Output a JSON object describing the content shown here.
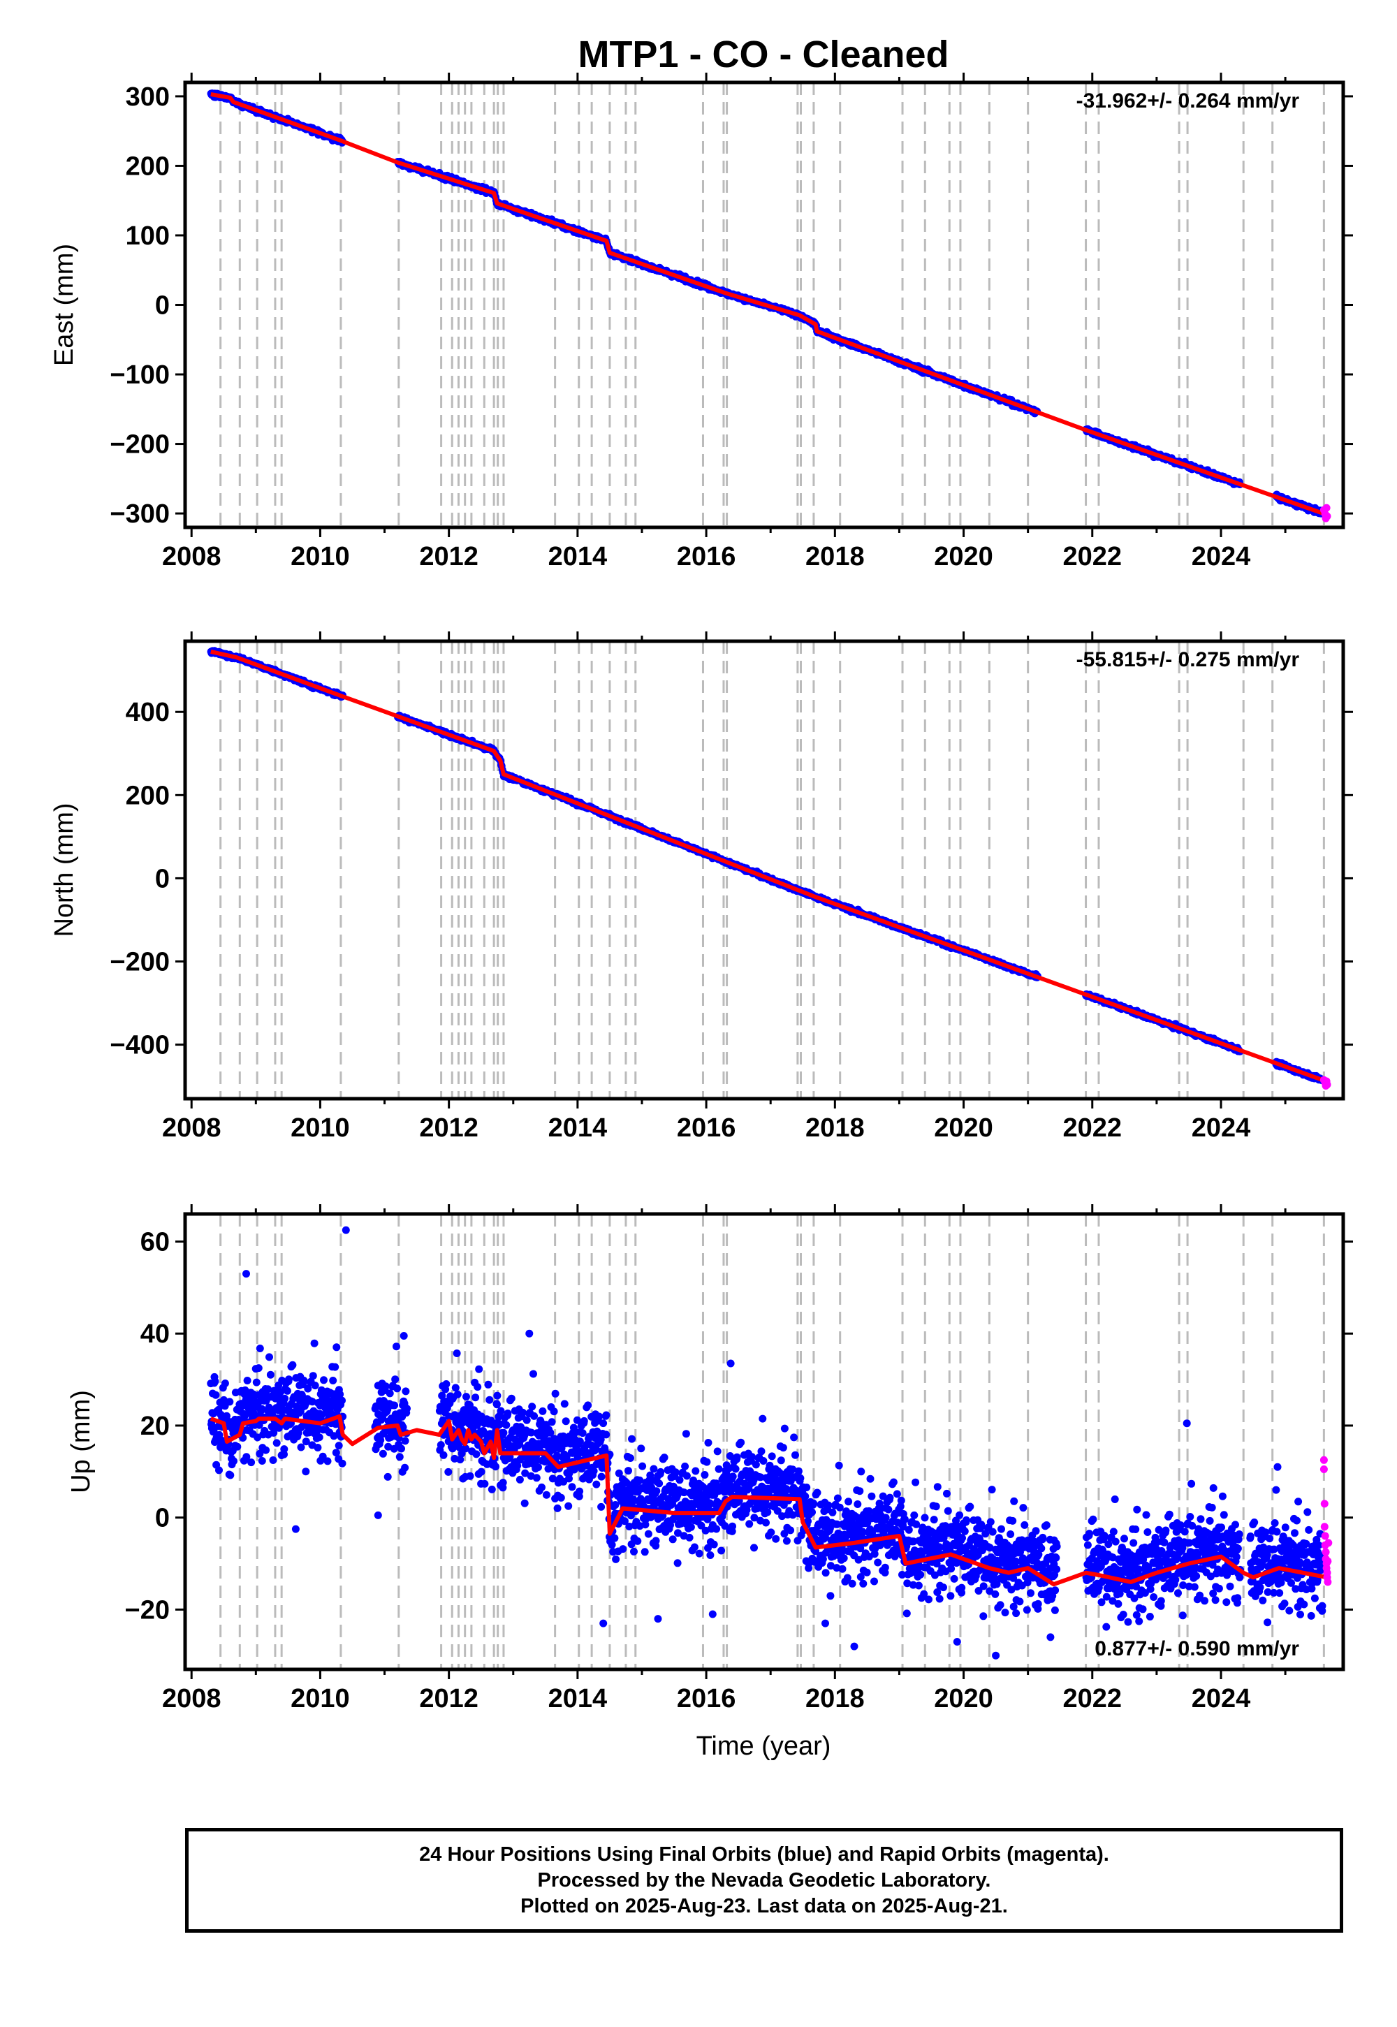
{
  "chart_title": "MTP1  - CO - Cleaned",
  "x_axis_label": "Time (year)",
  "colors": {
    "final_orbits": "#0000ff",
    "rapid_orbits": "#ff00ff",
    "model": "#ff0000",
    "event_lines": "#bbbbbb",
    "frame": "#000000"
  },
  "event_years": [
    2008.45,
    2008.75,
    2009.02,
    2009.3,
    2009.4,
    2010.32,
    2011.22,
    2011.88,
    2012.05,
    2012.15,
    2012.25,
    2012.35,
    2012.55,
    2012.7,
    2012.76,
    2012.85,
    2013.65,
    2014.02,
    2014.22,
    2014.5,
    2014.75,
    2014.9,
    2015.95,
    2016.27,
    2016.32,
    2017.42,
    2017.47,
    2017.67,
    2018.08,
    2019.05,
    2019.4,
    2019.78,
    2019.95,
    2020.4,
    2021.0,
    2021.9,
    2022.1,
    2023.35,
    2023.48,
    2024.35,
    2024.8,
    2025.6
  ],
  "chart_data": [
    {
      "type": "scatter",
      "ylabel": "East (mm)",
      "rate_label": "-31.962+/- 0.264 mm/yr",
      "xlim": [
        2007.9,
        2025.9
      ],
      "ylim": [
        -320,
        320
      ],
      "xticks": [
        "2008",
        "2010",
        "2012",
        "2014",
        "2016",
        "2018",
        "2020",
        "2022",
        "2024"
      ],
      "yticks": [
        "300",
        "200",
        "100",
        "0",
        "−100",
        "−200",
        "−300"
      ],
      "ytick_values": [
        300,
        200,
        100,
        0,
        -100,
        -200,
        -300
      ],
      "data_gaps": [
        [
          2010.35,
          2011.2
        ],
        [
          2021.15,
          2021.9
        ],
        [
          2024.3,
          2024.85
        ]
      ],
      "model_line": {
        "x": [
          2008.3,
          2008.6,
          2008.65,
          2010.3,
          2011.2,
          2012.7,
          2012.75,
          2014.45,
          2014.5,
          2016.3,
          2017.45,
          2017.7,
          2017.72,
          2021.9,
          2025.65
        ],
        "y": [
          303,
          298,
          292,
          237,
          205,
          161,
          146,
          92,
          75,
          17,
          -15,
          -28,
          -38,
          -180,
          -302
        ]
      },
      "rapid_orbit_points": {
        "x": [
          2025.6,
          2025.62,
          2025.63,
          2025.64,
          2025.65
        ],
        "y": [
          -295,
          -301,
          -307,
          -292,
          -304
        ]
      }
    },
    {
      "type": "scatter",
      "ylabel": "North (mm)",
      "rate_label": "-55.815+/- 0.275 mm/yr",
      "xlim": [
        2007.9,
        2025.9
      ],
      "ylim": [
        -530,
        570
      ],
      "xticks": [
        "2008",
        "2010",
        "2012",
        "2014",
        "2016",
        "2018",
        "2020",
        "2022",
        "2024"
      ],
      "yticks": [
        "400",
        "200",
        "0",
        "−200",
        "−400"
      ],
      "ytick_values": [
        400,
        200,
        0,
        -200,
        -400
      ],
      "data_gaps": [
        [
          2010.35,
          2011.2
        ],
        [
          2021.15,
          2021.9
        ],
        [
          2024.3,
          2024.85
        ]
      ],
      "model_line": {
        "x": [
          2008.3,
          2008.7,
          2010.3,
          2012.7,
          2012.8,
          2012.85,
          2017.7,
          2025.65
        ],
        "y": [
          545,
          531,
          440,
          306,
          283,
          250,
          -45,
          -489
        ]
      },
      "rapid_orbit_points": {
        "x": [
          2025.6,
          2025.62,
          2025.63,
          2025.64,
          2025.65
        ],
        "y": [
          -485,
          -492,
          -499,
          -488,
          -496
        ]
      }
    },
    {
      "type": "scatter",
      "ylabel": "Up (mm)",
      "rate_label": "0.877+/- 0.590 mm/yr",
      "xlim": [
        2007.9,
        2025.9
      ],
      "ylim": [
        -33,
        66
      ],
      "xticks": [
        "2008",
        "2010",
        "2012",
        "2014",
        "2016",
        "2018",
        "2020",
        "2022",
        "2024"
      ],
      "yticks": [
        "60",
        "40",
        "20",
        "0",
        "−20"
      ],
      "ytick_values": [
        60,
        40,
        20,
        0,
        -20
      ],
      "data_gaps": [
        [
          2010.35,
          2010.85
        ],
        [
          2011.35,
          2011.85
        ],
        [
          2021.45,
          2021.9
        ],
        [
          2024.3,
          2024.45
        ]
      ],
      "model_line": {
        "x": [
          2008.3,
          2008.5,
          2008.55,
          2008.75,
          2008.8,
          2009.0,
          2009.05,
          2009.3,
          2009.4,
          2009.45,
          2010.0,
          2010.3,
          2010.35,
          2010.5,
          2010.9,
          2011.2,
          2011.25,
          2011.5,
          2011.85,
          2012.0,
          2012.05,
          2012.15,
          2012.2,
          2012.25,
          2012.3,
          2012.35,
          2012.4,
          2012.5,
          2012.55,
          2012.65,
          2012.7,
          2012.75,
          2012.8,
          2013.5,
          2013.7,
          2014.45,
          2014.5,
          2014.7,
          2015.5,
          2016.2,
          2016.3,
          2016.4,
          2017.45,
          2017.5,
          2017.7,
          2018.3,
          2019.0,
          2019.1,
          2019.45,
          2019.8,
          2020.4,
          2020.7,
          2021.0,
          2021.4,
          2021.9,
          2022.1,
          2022.6,
          2023.0,
          2023.5,
          2024.0,
          2024.35,
          2024.5,
          2024.9,
          2025.65
        ],
        "y": [
          21.5,
          20.5,
          16.5,
          18.0,
          20.5,
          21.0,
          21.5,
          21.5,
          20.5,
          21.5,
          20.5,
          22.0,
          18.0,
          16.0,
          19.5,
          20.0,
          18.0,
          19.0,
          18.0,
          21.0,
          17.0,
          19.0,
          17.0,
          16.0,
          19.0,
          17.0,
          18.0,
          16.5,
          14.0,
          16.5,
          13.0,
          19.0,
          14.0,
          14.0,
          11.0,
          13.5,
          -3.5,
          2.0,
          1.0,
          1.0,
          3.5,
          4.5,
          4.0,
          -1.0,
          -6.5,
          -5.5,
          -4.0,
          -10.0,
          -9.0,
          -8.0,
          -11.0,
          -12.0,
          -11.0,
          -14.5,
          -12.0,
          -12.5,
          -14.0,
          -12.0,
          -10.0,
          -8.5,
          -12.0,
          -13.0,
          -11.0,
          -13.0
        ]
      },
      "rapid_orbit_points": {
        "x": [
          2025.6,
          2025.6,
          2025.61,
          2025.61,
          2025.62,
          2025.62,
          2025.63,
          2025.63,
          2025.64,
          2025.64,
          2025.65,
          2025.65,
          2025.66,
          2025.66,
          2025.67
        ],
        "y": [
          12.5,
          10.5,
          3.0,
          -2.0,
          -4.0,
          -6.0,
          -7.5,
          -9.0,
          -10.0,
          -11.0,
          -12.0,
          -13.0,
          -14.0,
          -9.5,
          -5.5
        ]
      }
    }
  ],
  "footer": {
    "line1": "24 Hour Positions Using Final Orbits (blue) and Rapid Orbits (magenta).",
    "line2": "Processed by the Nevada Geodetic Laboratory.",
    "line3": "Plotted on 2025-Aug-23. Last data on 2025-Aug-21."
  }
}
